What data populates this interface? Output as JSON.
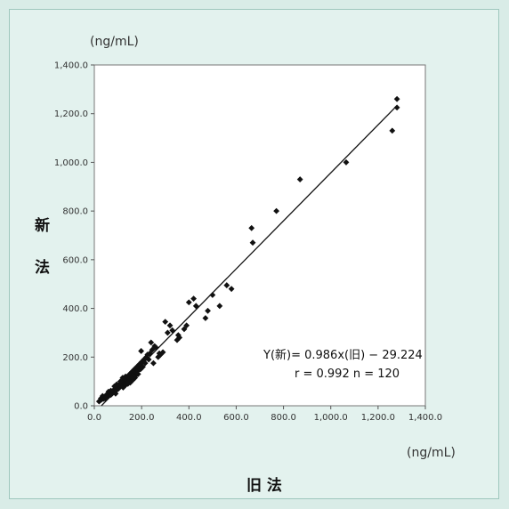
{
  "chart_data": {
    "type": "scatter",
    "y_unit": "(ng/mL)",
    "x_unit": "(ng/mL)",
    "ylabel_chars": [
      "新",
      "法"
    ],
    "xlabel": "旧 法",
    "xlim": [
      0,
      1400
    ],
    "ylim": [
      0,
      1400
    ],
    "x_ticks": [
      "0.0",
      "200.0",
      "400.0",
      "600.0",
      "800.0",
      "1,000.0",
      "1,200.0",
      "1,400.0"
    ],
    "y_ticks": [
      "0.0",
      "200.0",
      "400.0",
      "600.0",
      "800.0",
      "1,000.0",
      "1,200.0",
      "1,400.0"
    ],
    "grid": false,
    "regression": {
      "slope": 0.986,
      "intercept": -29.224,
      "x_range": [
        30,
        1280
      ]
    },
    "annotation_line1": "Y(新)= 0.986x(旧) − 29.224",
    "annotation_line2": "r = 0.992   n = 120",
    "points": [
      [
        20,
        18
      ],
      [
        25,
        22
      ],
      [
        28,
        30
      ],
      [
        30,
        25
      ],
      [
        35,
        40
      ],
      [
        38,
        28
      ],
      [
        40,
        35
      ],
      [
        45,
        30
      ],
      [
        48,
        42
      ],
      [
        50,
        38
      ],
      [
        55,
        45
      ],
      [
        58,
        50
      ],
      [
        60,
        40
      ],
      [
        62,
        55
      ],
      [
        65,
        48
      ],
      [
        68,
        52
      ],
      [
        70,
        45
      ],
      [
        72,
        58
      ],
      [
        75,
        50
      ],
      [
        78,
        60
      ],
      [
        80,
        55
      ],
      [
        82,
        65
      ],
      [
        85,
        58
      ],
      [
        88,
        62
      ],
      [
        90,
        50
      ],
      [
        92,
        70
      ],
      [
        95,
        65
      ],
      [
        98,
        75
      ],
      [
        100,
        80
      ],
      [
        102,
        70
      ],
      [
        105,
        85
      ],
      [
        108,
        78
      ],
      [
        110,
        90
      ],
      [
        112,
        82
      ],
      [
        115,
        95
      ],
      [
        118,
        88
      ],
      [
        120,
        100
      ],
      [
        122,
        75
      ],
      [
        125,
        110
      ],
      [
        128,
        95
      ],
      [
        130,
        105
      ],
      [
        132,
        85
      ],
      [
        135,
        115
      ],
      [
        138,
        100
      ],
      [
        140,
        120
      ],
      [
        142,
        90
      ],
      [
        145,
        125
      ],
      [
        148,
        110
      ],
      [
        150,
        130
      ],
      [
        152,
        95
      ],
      [
        155,
        135
      ],
      [
        158,
        120
      ],
      [
        160,
        140
      ],
      [
        162,
        105
      ],
      [
        165,
        145
      ],
      [
        168,
        130
      ],
      [
        170,
        150
      ],
      [
        172,
        115
      ],
      [
        175,
        155
      ],
      [
        178,
        135
      ],
      [
        180,
        160
      ],
      [
        185,
        145
      ],
      [
        190,
        170
      ],
      [
        195,
        150
      ],
      [
        198,
        225
      ],
      [
        200,
        180
      ],
      [
        205,
        160
      ],
      [
        210,
        190
      ],
      [
        215,
        175
      ],
      [
        220,
        200
      ],
      [
        225,
        210
      ],
      [
        230,
        190
      ],
      [
        235,
        215
      ],
      [
        240,
        260
      ],
      [
        245,
        230
      ],
      [
        250,
        175
      ],
      [
        255,
        245
      ],
      [
        260,
        240
      ],
      [
        270,
        200
      ],
      [
        275,
        215
      ],
      [
        280,
        210
      ],
      [
        290,
        220
      ],
      [
        300,
        345
      ],
      [
        310,
        300
      ],
      [
        320,
        330
      ],
      [
        330,
        310
      ],
      [
        350,
        270
      ],
      [
        355,
        290
      ],
      [
        360,
        280
      ],
      [
        380,
        315
      ],
      [
        390,
        330
      ],
      [
        400,
        425
      ],
      [
        420,
        440
      ],
      [
        430,
        410
      ],
      [
        470,
        360
      ],
      [
        480,
        390
      ],
      [
        500,
        455
      ],
      [
        530,
        410
      ],
      [
        560,
        495
      ],
      [
        580,
        480
      ],
      [
        665,
        730
      ],
      [
        670,
        670
      ],
      [
        770,
        800
      ],
      [
        870,
        930
      ],
      [
        1065,
        1000
      ],
      [
        1260,
        1130
      ],
      [
        1280,
        1225
      ],
      [
        1280,
        1260
      ],
      [
        132,
        120
      ],
      [
        145,
        100
      ],
      [
        160,
        115
      ],
      [
        175,
        125
      ],
      [
        185,
        130
      ],
      [
        200,
        155
      ],
      [
        120,
        115
      ],
      [
        110,
        100
      ],
      [
        95,
        88
      ],
      [
        85,
        80
      ],
      [
        70,
        62
      ],
      [
        60,
        58
      ]
    ]
  }
}
